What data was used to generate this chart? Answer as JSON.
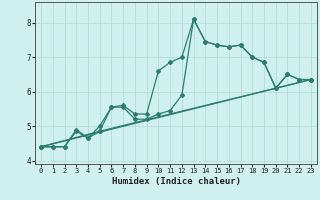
{
  "xlabel": "Humidex (Indice chaleur)",
  "bg_color": "#cff0ee",
  "line_color": "#2d7d6e",
  "grid_color": "#b0d8d0",
  "xlim": [
    -0.5,
    23.5
  ],
  "ylim": [
    3.9,
    8.6
  ],
  "yticks": [
    4,
    5,
    6,
    7,
    8
  ],
  "xticks": [
    0,
    1,
    2,
    3,
    4,
    5,
    6,
    7,
    8,
    9,
    10,
    11,
    12,
    13,
    14,
    15,
    16,
    17,
    18,
    19,
    20,
    21,
    22,
    23
  ],
  "line1_x": [
    0,
    1,
    2,
    3,
    4,
    5,
    6,
    7,
    8,
    9,
    10,
    11,
    12,
    13,
    14,
    15,
    16,
    17,
    18,
    19,
    20,
    21,
    22,
    23
  ],
  "line1_y": [
    4.4,
    4.4,
    4.4,
    4.85,
    4.65,
    5.0,
    5.55,
    5.6,
    5.35,
    5.35,
    6.6,
    6.85,
    7.0,
    8.1,
    7.45,
    7.35,
    7.3,
    7.35,
    7.0,
    6.85,
    6.1,
    6.5,
    6.35,
    6.35
  ],
  "line2_x": [
    0,
    1,
    2,
    3,
    4,
    5,
    6,
    7,
    8,
    9,
    10,
    11,
    12,
    13,
    14,
    15,
    16,
    17,
    18,
    19,
    20,
    21,
    22,
    23
  ],
  "line2_y": [
    4.4,
    4.4,
    4.4,
    4.9,
    4.65,
    4.85,
    5.55,
    5.55,
    5.2,
    5.2,
    5.35,
    5.45,
    5.9,
    8.1,
    7.45,
    7.35,
    7.3,
    7.35,
    7.0,
    6.85,
    6.1,
    6.5,
    6.35,
    6.35
  ],
  "line3_x": [
    0,
    5,
    23
  ],
  "line3_y": [
    4.4,
    4.85,
    6.35
  ],
  "line4_x": [
    0,
    5,
    23
  ],
  "line4_y": [
    4.4,
    4.85,
    6.35
  ],
  "markersize": 2.0,
  "linewidth": 0.9
}
